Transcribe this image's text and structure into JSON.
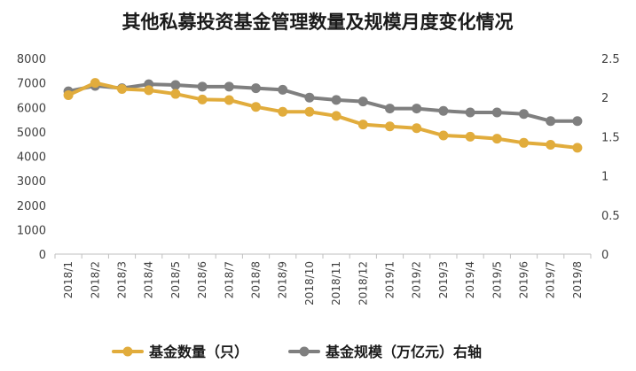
{
  "chart_data": {
    "type": "line",
    "title": "其他私募投资基金管理数量及规模月度变化情况",
    "categories": [
      "2018/1",
      "2018/2",
      "2018/3",
      "2018/4",
      "2018/5",
      "2018/6",
      "2018/7",
      "2018/8",
      "2018/9",
      "2018/10",
      "2018/11",
      "2018/12",
      "2019/1",
      "2019/2",
      "2019/3",
      "2019/4",
      "2019/5",
      "2019/6",
      "2019/7",
      "2019/8"
    ],
    "series": [
      {
        "name": "基金数量（只）",
        "axis": "left",
        "color": "#E1AC3C",
        "values": [
          6500,
          7000,
          6750,
          6700,
          6550,
          6320,
          6300,
          6020,
          5820,
          5820,
          5650,
          5300,
          5220,
          5150,
          4850,
          4800,
          4720,
          4550,
          4470,
          4350
        ]
      },
      {
        "name": "基金规模（万亿元）右轴",
        "axis": "right",
        "color": "#7F7F7F",
        "values": [
          2.08,
          2.15,
          2.12,
          2.17,
          2.16,
          2.14,
          2.14,
          2.12,
          2.1,
          2.0,
          1.97,
          1.95,
          1.86,
          1.86,
          1.83,
          1.81,
          1.81,
          1.79,
          1.7,
          1.7
        ]
      }
    ],
    "y_left": {
      "min": 0,
      "max": 8000,
      "step": 1000,
      "ticks": [
        "0",
        "1000",
        "2000",
        "3000",
        "4000",
        "5000",
        "6000",
        "7000",
        "8000"
      ]
    },
    "y_right": {
      "min": 0,
      "max": 2.5,
      "step": 0.5,
      "ticks": [
        "0",
        "0.5",
        "1",
        "1.5",
        "2",
        "2.5"
      ]
    },
    "grid": false,
    "legend_position": "bottom"
  }
}
